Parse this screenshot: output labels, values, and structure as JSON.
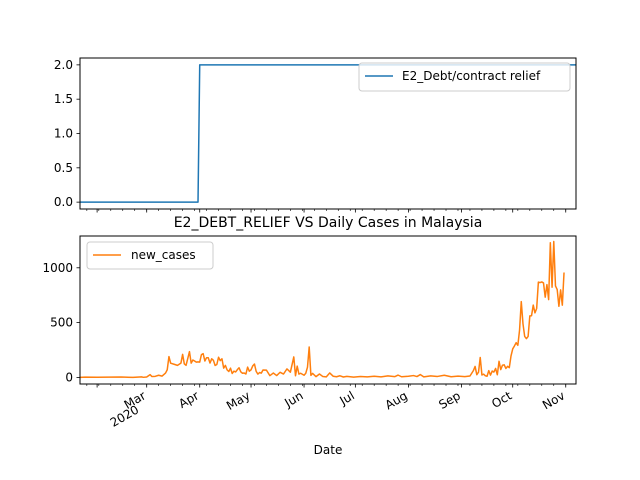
{
  "chart_data": [
    {
      "type": "line",
      "panel": "top",
      "title": "",
      "xlabel": "",
      "ylabel": "",
      "ylim": [
        -0.1,
        2.1
      ],
      "yticks": [
        "0.0",
        "0.5",
        "1.0",
        "1.5",
        "2.0"
      ],
      "legend": {
        "placement": "top-right",
        "entries": [
          "E2_Debt/contract relief"
        ]
      },
      "grid": false,
      "series": [
        {
          "name": "E2_Debt/contract relief",
          "color": "#1f77b4",
          "points": [
            [
              "2020-01-22",
              0
            ],
            [
              "2020-03-31",
              0
            ],
            [
              "2020-04-01",
              2
            ],
            [
              "2020-11-07",
              2
            ]
          ]
        }
      ]
    },
    {
      "type": "line",
      "panel": "bottom",
      "title": "E2_DEBT_RELIEF VS Daily Cases in Malaysia",
      "xlabel": "Date",
      "ylabel": "",
      "ylim": [
        -60,
        1290
      ],
      "yticks": [
        "0",
        "500",
        "1000"
      ],
      "xlim": [
        "2020-01-22",
        "2020-11-07"
      ],
      "xticks": [
        {
          "date": "2020-03-01",
          "label": "Mar",
          "sublabel": "2020"
        },
        {
          "date": "2020-04-01",
          "label": "Apr"
        },
        {
          "date": "2020-05-01",
          "label": "May"
        },
        {
          "date": "2020-06-01",
          "label": "Jun"
        },
        {
          "date": "2020-07-01",
          "label": "Jul"
        },
        {
          "date": "2020-08-01",
          "label": "Aug"
        },
        {
          "date": "2020-09-01",
          "label": "Sep"
        },
        {
          "date": "2020-10-01",
          "label": "Oct"
        },
        {
          "date": "2020-11-01",
          "label": "Nov"
        }
      ],
      "legend": {
        "placement": "top-left",
        "entries": [
          "new_cases"
        ]
      },
      "grid": false,
      "series": [
        {
          "name": "new_cases",
          "color": "#ff7f0e",
          "points": [
            [
              "2020-01-22",
              0
            ],
            [
              "2020-01-25",
              3
            ],
            [
              "2020-02-01",
              2
            ],
            [
              "2020-02-08",
              3
            ],
            [
              "2020-02-15",
              4
            ],
            [
              "2020-02-22",
              0
            ],
            [
              "2020-02-27",
              5
            ],
            [
              "2020-02-28",
              1
            ],
            [
              "2020-03-01",
              4
            ],
            [
              "2020-03-03",
              25
            ],
            [
              "2020-03-04",
              8
            ],
            [
              "2020-03-06",
              10
            ],
            [
              "2020-03-08",
              20
            ],
            [
              "2020-03-10",
              12
            ],
            [
              "2020-03-12",
              40
            ],
            [
              "2020-03-13",
              70
            ],
            [
              "2020-03-14",
              190
            ],
            [
              "2020-03-15",
              130
            ],
            [
              "2020-03-17",
              120
            ],
            [
              "2020-03-19",
              110
            ],
            [
              "2020-03-21",
              130
            ],
            [
              "2020-03-22",
              210
            ],
            [
              "2020-03-23",
              123
            ],
            [
              "2020-03-24",
              110
            ],
            [
              "2020-03-25",
              172
            ],
            [
              "2020-03-26",
              235
            ],
            [
              "2020-03-27",
              130
            ],
            [
              "2020-03-28",
              159
            ],
            [
              "2020-03-29",
              150
            ],
            [
              "2020-03-30",
              140
            ],
            [
              "2020-03-31",
              142
            ],
            [
              "2020-04-01",
              140
            ],
            [
              "2020-04-02",
              208
            ],
            [
              "2020-04-03",
              217
            ],
            [
              "2020-04-04",
              150
            ],
            [
              "2020-04-05",
              180
            ],
            [
              "2020-04-06",
              179
            ],
            [
              "2020-04-07",
              131
            ],
            [
              "2020-04-08",
              170
            ],
            [
              "2020-04-09",
              156
            ],
            [
              "2020-04-10",
              109
            ],
            [
              "2020-04-11",
              118
            ],
            [
              "2020-04-12",
              184
            ],
            [
              "2020-04-13",
              153
            ],
            [
              "2020-04-14",
              170
            ],
            [
              "2020-04-15",
              85
            ],
            [
              "2020-04-16",
              110
            ],
            [
              "2020-04-17",
              69
            ],
            [
              "2020-04-18",
              54
            ],
            [
              "2020-04-19",
              84
            ],
            [
              "2020-04-20",
              36
            ],
            [
              "2020-04-21",
              57
            ],
            [
              "2020-04-22",
              50
            ],
            [
              "2020-04-23",
              71
            ],
            [
              "2020-04-24",
              88
            ],
            [
              "2020-04-25",
              51
            ],
            [
              "2020-04-26",
              38
            ],
            [
              "2020-04-27",
              40
            ],
            [
              "2020-04-28",
              31
            ],
            [
              "2020-04-29",
              94
            ],
            [
              "2020-04-30",
              57
            ],
            [
              "2020-05-01",
              69
            ],
            [
              "2020-05-02",
              105
            ],
            [
              "2020-05-03",
              122
            ],
            [
              "2020-05-04",
              55
            ],
            [
              "2020-05-05",
              30
            ],
            [
              "2020-05-06",
              45
            ],
            [
              "2020-05-07",
              39
            ],
            [
              "2020-05-08",
              68
            ],
            [
              "2020-05-10",
              67
            ],
            [
              "2020-05-12",
              16
            ],
            [
              "2020-05-14",
              40
            ],
            [
              "2020-05-16",
              17
            ],
            [
              "2020-05-18",
              47
            ],
            [
              "2020-05-20",
              31
            ],
            [
              "2020-05-22",
              78
            ],
            [
              "2020-05-24",
              48
            ],
            [
              "2020-05-26",
              187
            ],
            [
              "2020-05-27",
              15
            ],
            [
              "2020-05-28",
              103
            ],
            [
              "2020-05-29",
              30
            ],
            [
              "2020-05-30",
              38
            ],
            [
              "2020-06-01",
              20
            ],
            [
              "2020-06-02",
              38
            ],
            [
              "2020-06-03",
              93
            ],
            [
              "2020-06-04",
              277
            ],
            [
              "2020-06-05",
              19
            ],
            [
              "2020-06-06",
              37
            ],
            [
              "2020-06-08",
              7
            ],
            [
              "2020-06-10",
              31
            ],
            [
              "2020-06-12",
              8
            ],
            [
              "2020-06-14",
              5
            ],
            [
              "2020-06-16",
              41
            ],
            [
              "2020-06-18",
              11
            ],
            [
              "2020-06-20",
              6
            ],
            [
              "2020-06-22",
              15
            ],
            [
              "2020-06-24",
              4
            ],
            [
              "2020-06-26",
              10
            ],
            [
              "2020-06-30",
              3
            ],
            [
              "2020-07-04",
              8
            ],
            [
              "2020-07-08",
              5
            ],
            [
              "2020-07-12",
              11
            ],
            [
              "2020-07-16",
              5
            ],
            [
              "2020-07-20",
              14
            ],
            [
              "2020-07-24",
              7
            ],
            [
              "2020-07-26",
              21
            ],
            [
              "2020-07-28",
              6
            ],
            [
              "2020-08-01",
              11
            ],
            [
              "2020-08-04",
              17
            ],
            [
              "2020-08-06",
              8
            ],
            [
              "2020-08-08",
              26
            ],
            [
              "2020-08-10",
              5
            ],
            [
              "2020-08-14",
              14
            ],
            [
              "2020-08-18",
              9
            ],
            [
              "2020-08-22",
              20
            ],
            [
              "2020-08-26",
              6
            ],
            [
              "2020-08-30",
              12
            ],
            [
              "2020-09-03",
              7
            ],
            [
              "2020-09-06",
              13
            ],
            [
              "2020-09-08",
              62
            ],
            [
              "2020-09-09",
              100
            ],
            [
              "2020-09-10",
              25
            ],
            [
              "2020-09-11",
              48
            ],
            [
              "2020-09-12",
              182
            ],
            [
              "2020-09-13",
              22
            ],
            [
              "2020-09-14",
              30
            ],
            [
              "2020-09-15",
              15
            ],
            [
              "2020-09-16",
              11
            ],
            [
              "2020-09-17",
              62
            ],
            [
              "2020-09-18",
              21
            ],
            [
              "2020-09-19",
              58
            ],
            [
              "2020-09-20",
              49
            ],
            [
              "2020-09-21",
              82
            ],
            [
              "2020-09-22",
              24
            ],
            [
              "2020-09-23",
              147
            ],
            [
              "2020-09-24",
              71
            ],
            [
              "2020-09-25",
              111
            ],
            [
              "2020-09-26",
              115
            ],
            [
              "2020-09-27",
              82
            ],
            [
              "2020-09-28",
              101
            ],
            [
              "2020-09-29",
              89
            ],
            [
              "2020-09-30",
              196
            ],
            [
              "2020-10-01",
              260
            ],
            [
              "2020-10-02",
              287
            ],
            [
              "2020-10-03",
              317
            ],
            [
              "2020-10-04",
              293
            ],
            [
              "2020-10-05",
              432
            ],
            [
              "2020-10-06",
              691
            ],
            [
              "2020-10-07",
              489
            ],
            [
              "2020-10-08",
              374
            ],
            [
              "2020-10-09",
              354
            ],
            [
              "2020-10-10",
              374
            ],
            [
              "2020-10-11",
              561
            ],
            [
              "2020-10-12",
              563
            ],
            [
              "2020-10-13",
              660
            ],
            [
              "2020-10-14",
              589
            ],
            [
              "2020-10-15",
              629
            ],
            [
              "2020-10-16",
              869
            ],
            [
              "2020-10-17",
              865
            ],
            [
              "2020-10-18",
              871
            ],
            [
              "2020-10-19",
              862
            ],
            [
              "2020-10-20",
              732
            ],
            [
              "2020-10-21",
              847
            ],
            [
              "2020-10-22",
              710
            ],
            [
              "2020-10-23",
              1228
            ],
            [
              "2020-10-24",
              823
            ],
            [
              "2020-10-25",
              1240
            ],
            [
              "2020-10-26",
              835
            ],
            [
              "2020-10-27",
              801
            ],
            [
              "2020-10-28",
              649
            ],
            [
              "2020-10-29",
              799
            ],
            [
              "2020-10-30",
              659
            ],
            [
              "2020-10-31",
              957
            ]
          ]
        }
      ]
    }
  ]
}
